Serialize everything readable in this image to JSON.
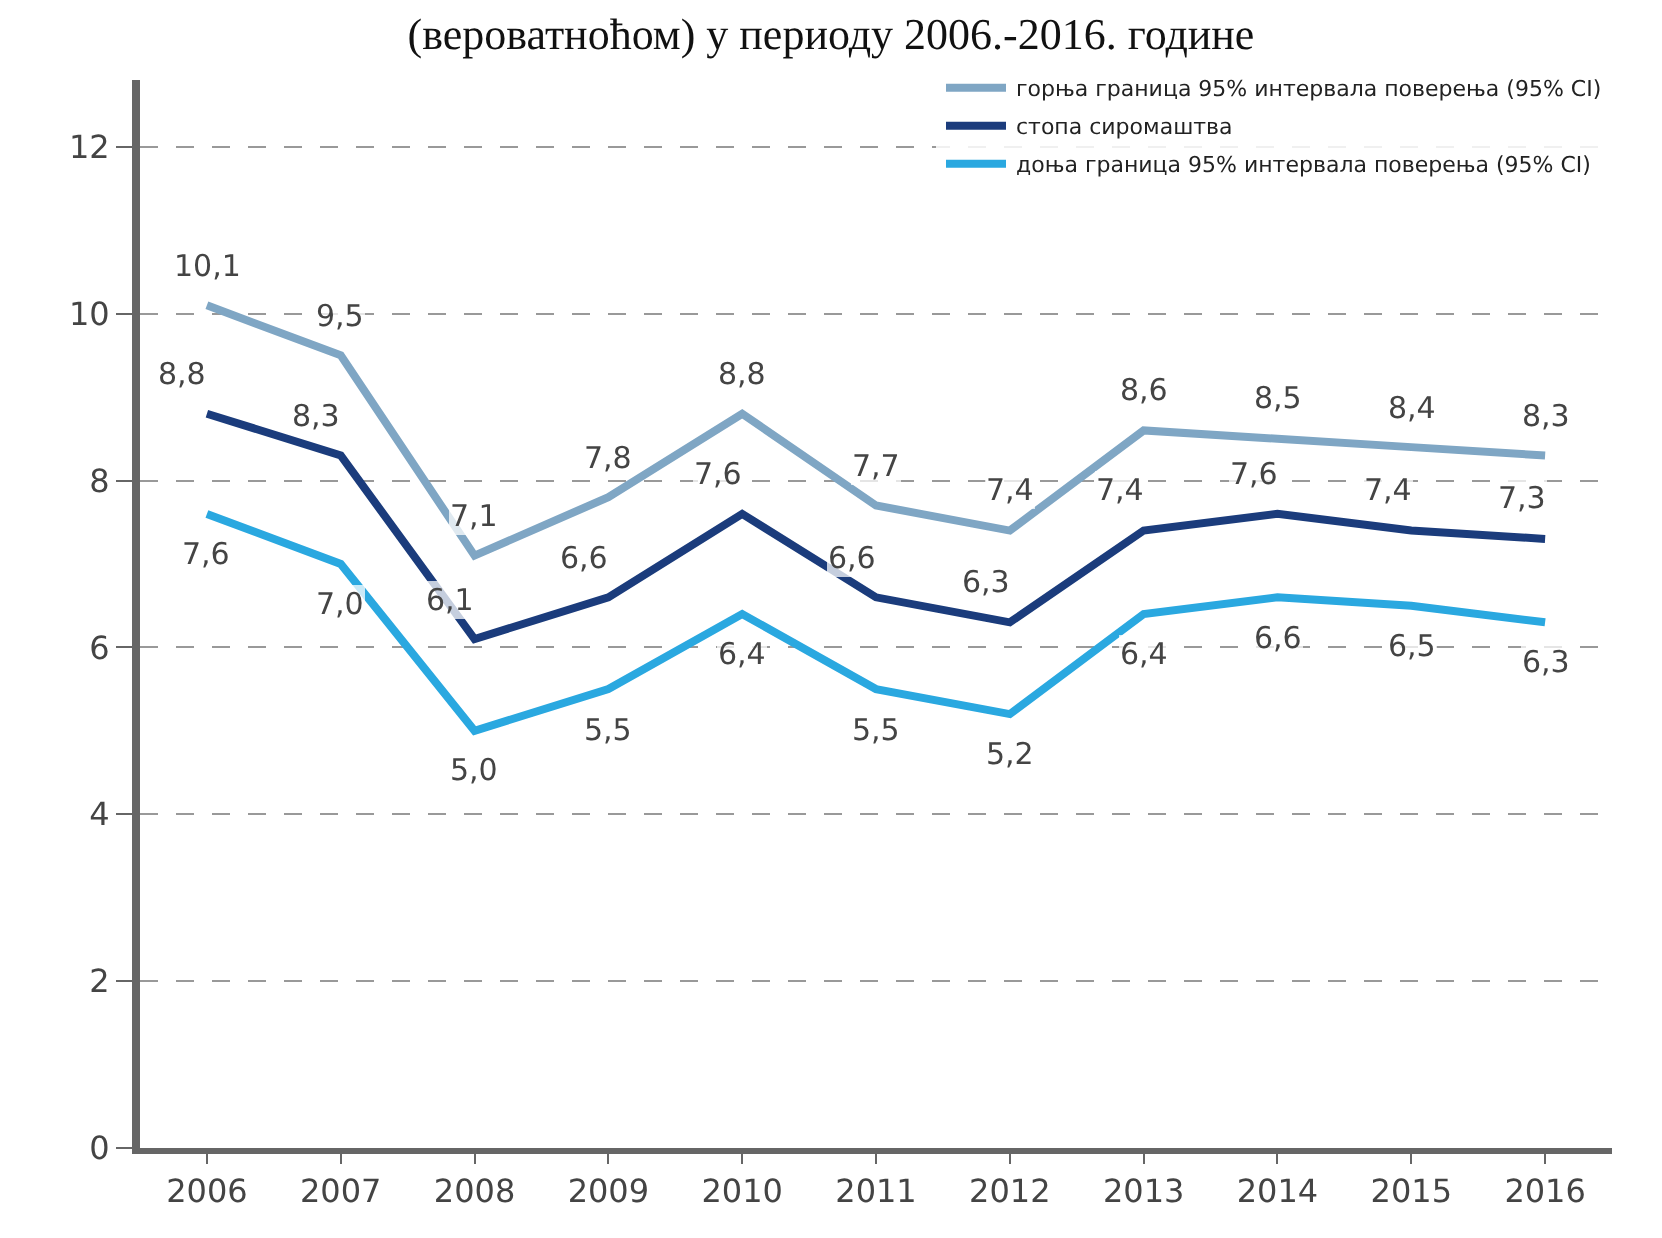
{
  "chart_data": {
    "type": "line",
    "title": "(вероватноћом) у периоду 2006.-2016. године",
    "categories": [
      "2006",
      "2007",
      "2008",
      "2009",
      "2010",
      "2011",
      "2012",
      "2013",
      "2014",
      "2015",
      "2016"
    ],
    "series": [
      {
        "name": "горња граница 95% интервала поверења (95% CI)",
        "color": "#7fa6c4",
        "values": [
          10.1,
          9.5,
          7.1,
          7.8,
          8.8,
          7.7,
          7.4,
          8.6,
          8.5,
          8.4,
          8.3
        ],
        "value_labels": [
          "10,1",
          "9,5",
          "7,1",
          "7,8",
          "8,8",
          "7,7",
          "7,4",
          "8,6",
          "8,5",
          "8,4",
          "8,3"
        ]
      },
      {
        "name": "стопа сиромаштва",
        "color": "#1b3c7c",
        "values": [
          8.8,
          8.3,
          6.1,
          6.6,
          7.6,
          6.6,
          6.3,
          7.4,
          7.6,
          7.4,
          7.3
        ],
        "value_labels": [
          "8,8",
          "8,3",
          "6,1",
          "6,6",
          "7,6",
          "6,6",
          "6,3",
          "7,4",
          "7,6",
          "7,4",
          "7,3"
        ]
      },
      {
        "name": "доња граница 95% интервала поверења (95% CI)",
        "color": "#2aa8e0",
        "values": [
          7.6,
          7.0,
          5.0,
          5.5,
          6.4,
          5.5,
          5.2,
          6.4,
          6.6,
          6.5,
          6.3
        ],
        "value_labels": [
          "7,6",
          "7,0",
          "5,0",
          "5,5",
          "6,4",
          "5,5",
          "5,2",
          "6,4",
          "6,6",
          "6,5",
          "6,3"
        ]
      }
    ],
    "ylim": [
      0,
      12.8
    ],
    "yticks": [
      0,
      2,
      4,
      6,
      8,
      10,
      12
    ],
    "grid": "y",
    "legend": "top right",
    "marker": "none",
    "line_style": "solid"
  }
}
